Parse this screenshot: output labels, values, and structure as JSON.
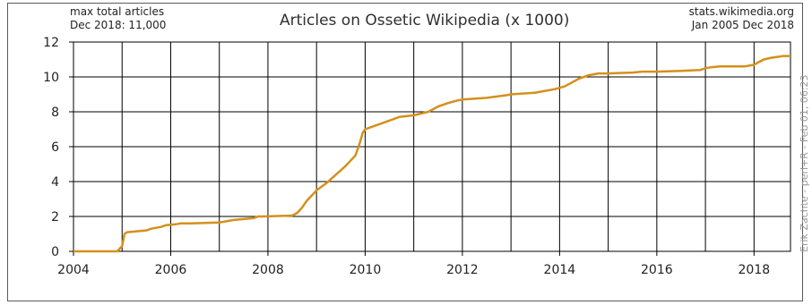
{
  "header": {
    "left_line1": "max total articles",
    "left_line2": "Dec 2018: 11,000",
    "right_line1": "stats.wikimedia.org",
    "right_line2": "Jan 2005 Dec 2018",
    "credit": "Erik Zachte - perl+R - Feb 01, 06:23"
  },
  "colors": {
    "line": "#d4901c",
    "grid": "#000000",
    "frame": "#5a5a5a"
  },
  "chart_data": {
    "type": "line",
    "title": "Articles on Ossetic Wikipedia (x 1000)",
    "xlabel": "",
    "ylabel": "",
    "xlim": [
      2004,
      2018.75
    ],
    "ylim": [
      0,
      12
    ],
    "x_ticks": [
      2004,
      2006,
      2008,
      2010,
      2012,
      2014,
      2016,
      2018
    ],
    "y_ticks": [
      0,
      2,
      4,
      6,
      8,
      10,
      12
    ],
    "grid": true,
    "legend": "none",
    "series": [
      {
        "x": [
          2004.0,
          2004.9,
          2005.0,
          2005.05,
          2005.1,
          2005.5,
          2005.6,
          2005.8,
          2005.9,
          2006.1,
          2006.2,
          2006.4,
          2007.0,
          2007.1,
          2007.3,
          2007.7,
          2007.8,
          2007.9,
          2008.5,
          2008.6,
          2008.7,
          2008.8,
          2008.9,
          2009.0,
          2009.2,
          2009.4,
          2009.6,
          2009.8,
          2009.9,
          2009.95,
          2010.0,
          2010.1,
          2010.3,
          2010.5,
          2010.7,
          2011.0,
          2011.3,
          2011.5,
          2011.7,
          2011.9,
          2012.0,
          2012.5,
          2012.9,
          2013.0,
          2013.5,
          2013.7,
          2013.9,
          2014.1,
          2014.2,
          2014.4,
          2014.6,
          2014.8,
          2015.0,
          2015.5,
          2015.7,
          2016.0,
          2016.5,
          2016.9,
          2017.0,
          2017.1,
          2017.3,
          2017.5,
          2017.8,
          2018.0,
          2018.1,
          2018.2,
          2018.35,
          2018.6,
          2018.75
        ],
        "values": [
          0,
          0,
          0.3,
          1.0,
          1.1,
          1.2,
          1.3,
          1.4,
          1.5,
          1.55,
          1.6,
          1.6,
          1.65,
          1.7,
          1.8,
          1.9,
          2.0,
          2.0,
          2.05,
          2.2,
          2.5,
          2.9,
          3.2,
          3.5,
          3.9,
          4.4,
          4.9,
          5.5,
          6.3,
          6.8,
          7.0,
          7.1,
          7.3,
          7.5,
          7.7,
          7.8,
          8.0,
          8.3,
          8.5,
          8.65,
          8.7,
          8.8,
          8.95,
          9.0,
          9.1,
          9.2,
          9.3,
          9.45,
          9.6,
          9.9,
          10.1,
          10.2,
          10.2,
          10.25,
          10.3,
          10.3,
          10.35,
          10.4,
          10.5,
          10.55,
          10.6,
          10.6,
          10.6,
          10.7,
          10.85,
          11.0,
          11.1,
          11.2,
          11.2
        ]
      }
    ]
  }
}
